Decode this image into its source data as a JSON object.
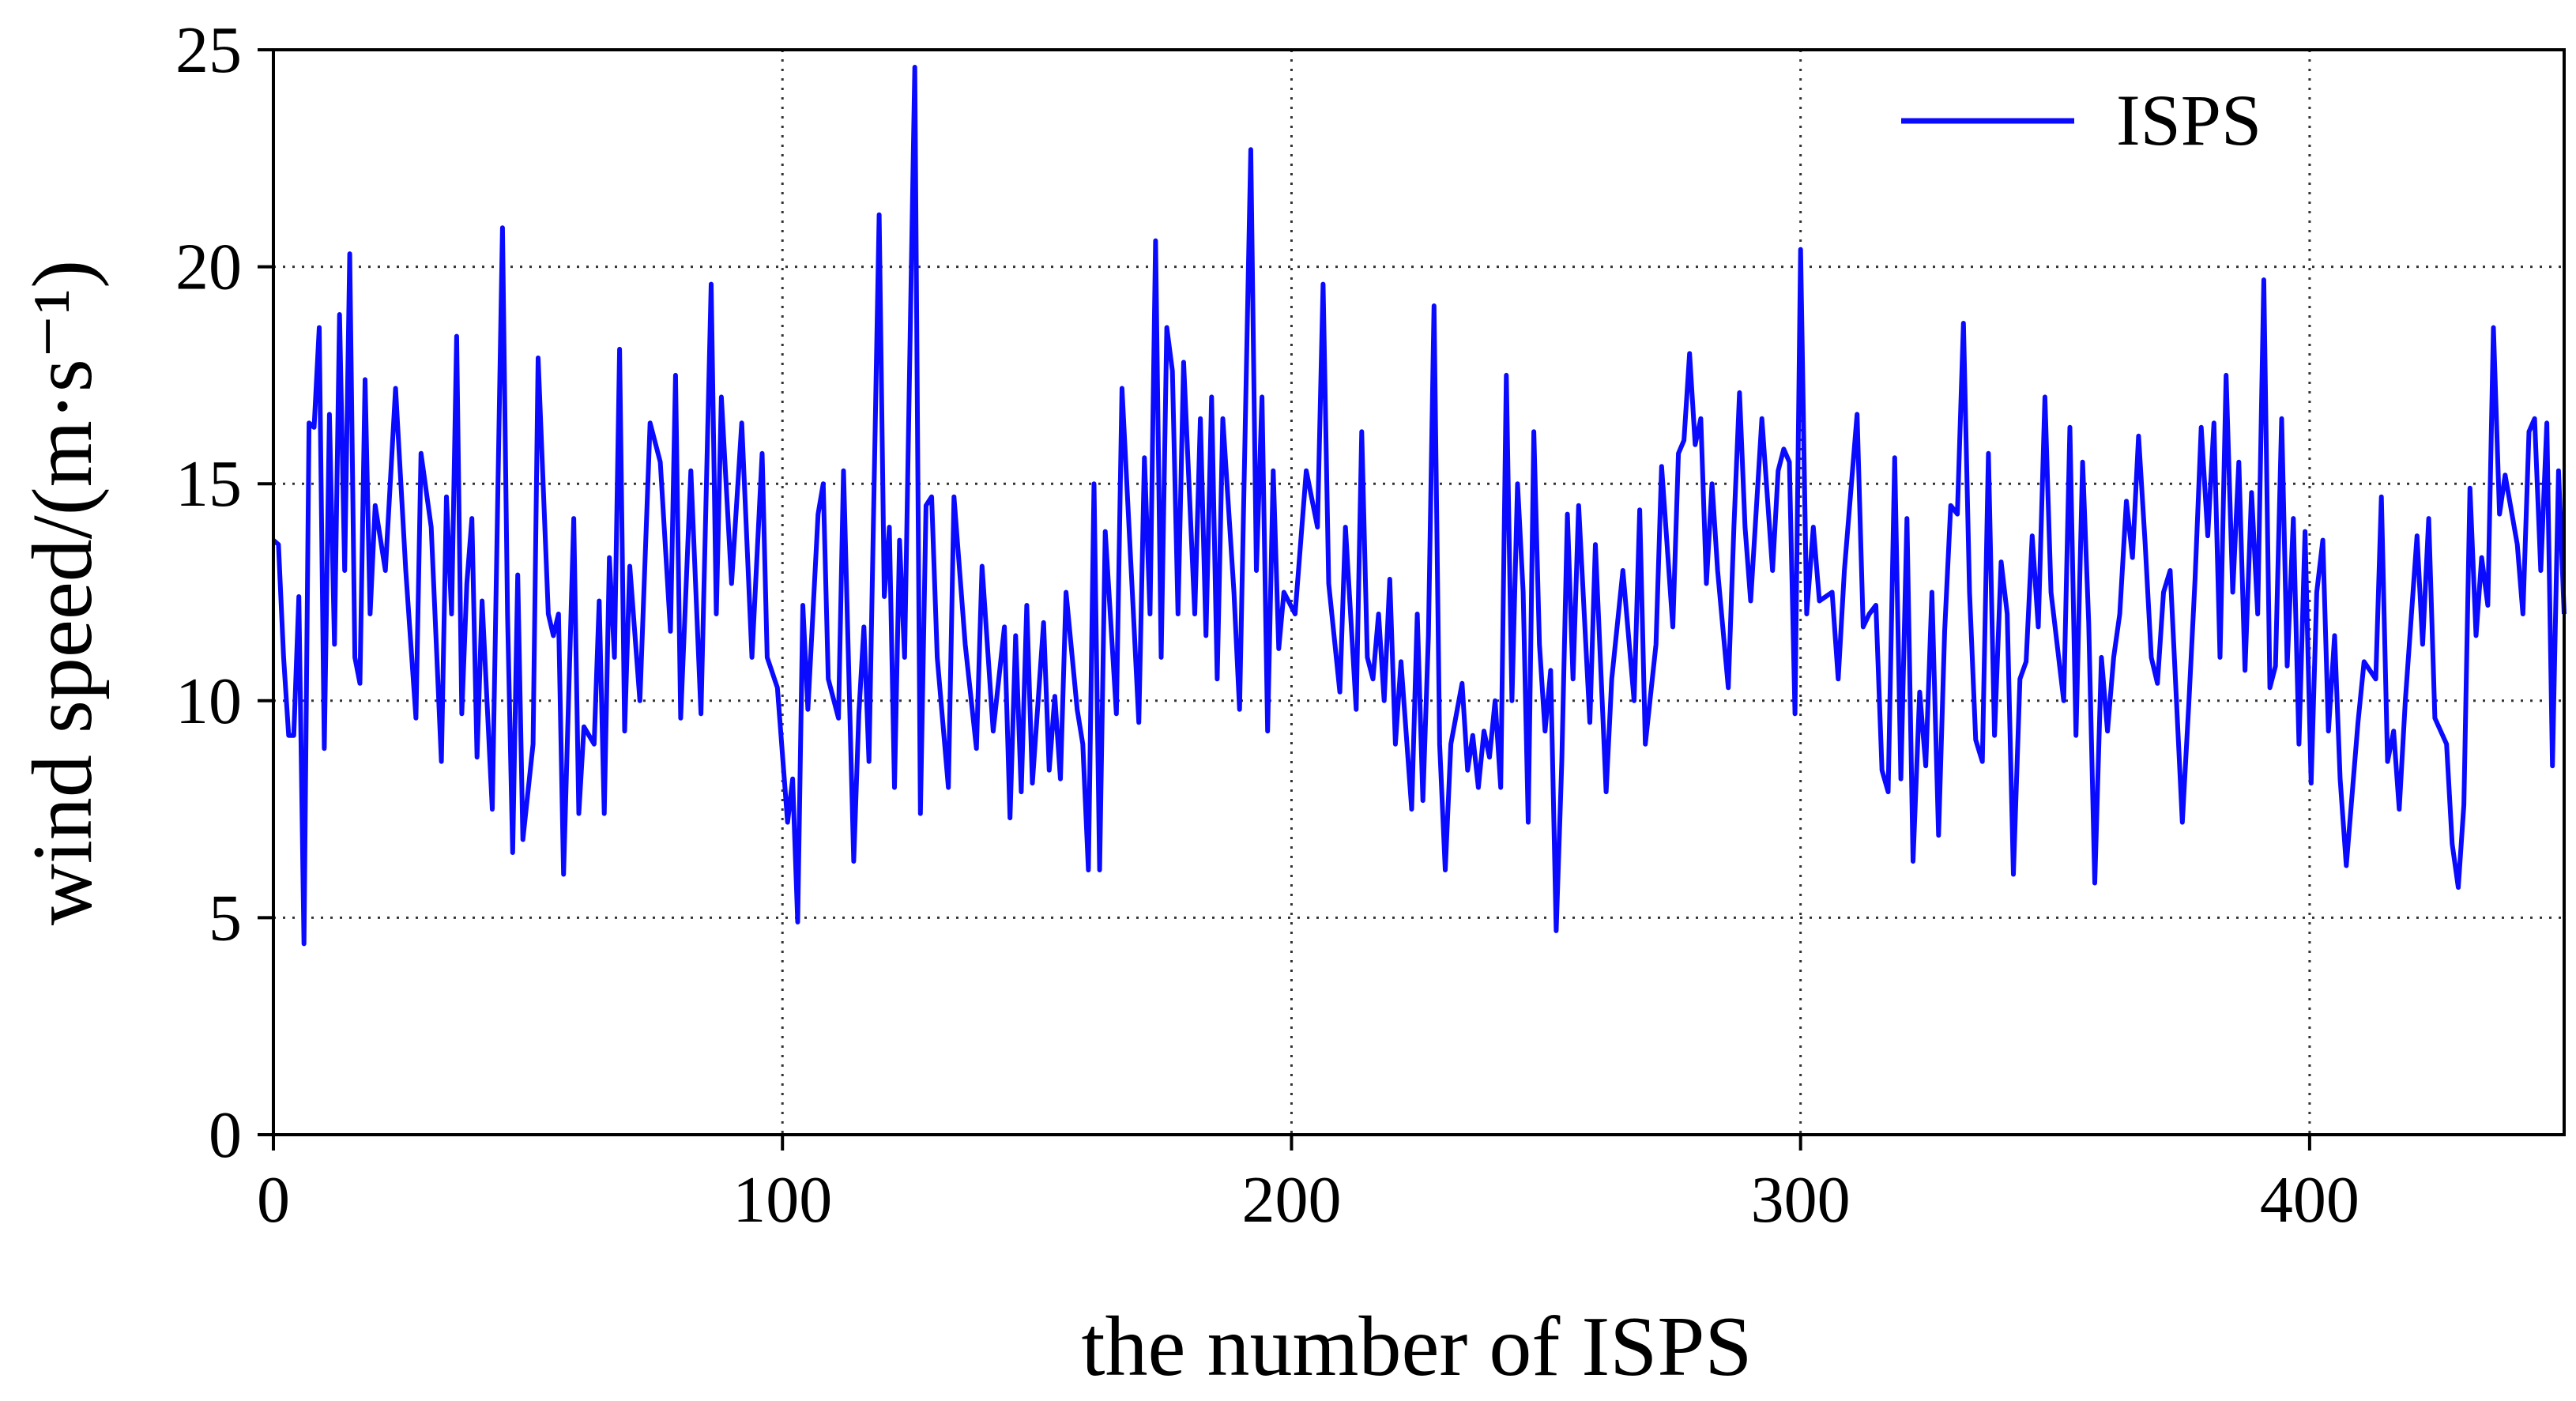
{
  "chart_data": {
    "type": "line",
    "xlabel": "the number of ISPS",
    "ylabel": "wind speed/(m·s⁻¹)",
    "xlim": [
      0,
      450
    ],
    "ylim": [
      0,
      25
    ],
    "xticks": [
      0,
      100,
      200,
      300,
      400
    ],
    "yticks": [
      0,
      5,
      10,
      15,
      20,
      25
    ],
    "grid": true,
    "legend": "upper right",
    "series": [
      {
        "name": "ISPS",
        "color": "#0a0aff",
        "x": [
          0,
          1,
          2,
          3,
          4,
          5,
          6,
          7,
          8,
          9,
          10,
          11,
          12,
          13,
          14,
          15,
          16,
          17,
          18,
          19,
          20,
          22,
          24,
          26,
          28,
          29,
          31,
          33,
          34,
          35,
          36,
          37,
          38,
          39,
          40,
          41,
          43,
          45,
          46,
          47,
          48,
          49,
          51,
          52,
          54,
          55,
          56,
          57,
          59,
          60,
          61,
          63,
          64,
          65,
          66,
          67,
          68,
          69,
          70,
          72,
          74,
          76,
          78,
          79,
          80,
          82,
          84,
          86,
          87,
          88,
          90,
          92,
          94,
          96,
          97,
          99,
          101,
          102,
          103,
          104,
          105,
          107,
          108,
          109,
          111,
          112,
          114,
          115,
          116,
          117,
          119,
          120,
          121,
          122,
          123,
          124,
          126,
          127.1,
          128.2,
          129.3,
          130.4,
          132.6,
          133.7,
          135.9,
          138.1,
          139.2,
          141.4,
          143.6,
          144.7,
          145.8,
          146.9,
          148,
          149.1,
          151.3,
          152.4,
          153.5,
          154.6,
          155.7,
          157.9,
          159,
          160.1,
          161.2,
          162.3,
          163.4,
          165.6,
          166.7,
          168.9,
          170,
          171.1,
          172.2,
          173.3,
          174.4,
          175.5,
          176.6,
          177.7,
          178.8,
          181,
          182.1,
          183.2,
          184.3,
          185.4,
          186.5,
          188.7,
          189.8,
          192,
          193.1,
          194.2,
          195.3,
          196.4,
          197.5,
          198.5,
          200.7,
          202.9,
          205.1,
          206.2,
          207.3,
          209.5,
          210.6,
          212.7,
          213.8,
          214.9,
          216,
          217.1,
          218.2,
          219.3,
          220.4,
          221.5,
          223.6,
          224.7,
          225.8,
          226.9,
          228,
          229.1,
          230.2,
          231.3,
          233.5,
          234.6,
          235.6,
          236.7,
          237.8,
          238.9,
          240,
          241.1,
          242.2,
          243.3,
          244.4,
          245.5,
          246.5,
          247.6,
          248.7,
          249.8,
          250.9,
          252,
          253.1,
          254.2,
          255.3,
          256.4,
          258.6,
          259.7,
          261.8,
          262.9,
          265.1,
          267.3,
          268.4,
          269.5,
          271.6,
          272.7,
          274.9,
          276,
          277.1,
          278.2,
          279.3,
          280.4,
          281.5,
          282.6,
          283.7,
          285.8,
          286.9,
          288,
          289.1,
          290.2,
          292.4,
          294.5,
          295.6,
          296.7,
          297.8,
          298.9,
          300,
          301.2,
          302.5,
          303.7,
          306.2,
          307.4,
          308.6,
          311.1,
          312.3,
          313.5,
          314.8,
          316,
          317.2,
          318.5,
          319.7,
          320.9,
          322.1,
          323.4,
          324.6,
          325.8,
          327.1,
          328.3,
          329.5,
          330.8,
          332,
          333.2,
          334.4,
          335.7,
          336.9,
          338.1,
          339.4,
          340.6,
          341.8,
          343.1,
          344.3,
          345.5,
          346.7,
          348,
          349.2,
          351.7,
          352.9,
          354.1,
          355.4,
          356.6,
          357.8,
          359.1,
          360.3,
          361.5,
          362.7,
          364,
          365.2,
          366.4,
          367.7,
          368.9,
          370.1,
          371.3,
          372.6,
          375,
          376.3,
          377.5,
          378.7,
          380,
          381.2,
          382.4,
          383.6,
          384.9,
          386.1,
          387.3,
          388.6,
          389.8,
          391,
          392.2,
          393.3,
          394.5,
          395.6,
          396.8,
          397.9,
          399.1,
          400.3,
          401.4,
          402.6,
          403.7,
          404.9,
          406,
          407.2,
          409.5,
          410.7,
          413,
          414.1,
          415.3,
          416.5,
          417.6,
          418.8,
          421.1,
          422.2,
          423.4,
          424.6,
          426.9,
          428,
          429.2,
          430.3,
          431.5,
          432.7,
          433.8,
          435,
          436.1,
          437.3,
          438.4,
          440.8,
          441.9,
          443.1,
          444.2,
          445.4,
          446.6,
          447.7,
          448.9,
          450
        ],
        "values": [
          13.7,
          13.6,
          11,
          9.2,
          9.2,
          12.4,
          4.4,
          16.4,
          16.3,
          18.6,
          8.9,
          16.6,
          11.3,
          18.9,
          13,
          20.3,
          11,
          10.4,
          17.4,
          12,
          14.5,
          13,
          17.2,
          13,
          9.6,
          15.7,
          14,
          8.6,
          14.7,
          12,
          18.4,
          9.7,
          12.7,
          14.2,
          8.7,
          12.3,
          7.5,
          20.9,
          12,
          6.5,
          12.9,
          6.8,
          9,
          17.9,
          12,
          11.5,
          12,
          6,
          14.2,
          7.4,
          9.4,
          9,
          12.3,
          7.4,
          13.3,
          11,
          18.1,
          9.3,
          13.1,
          10,
          16.4,
          15.5,
          11.6,
          17.5,
          9.6,
          15.3,
          9.7,
          19.6,
          12,
          17,
          12.7,
          16.4,
          11,
          15.7,
          11,
          10.3,
          7.2,
          8.2,
          4.9,
          12.2,
          9.8,
          14.3,
          15,
          10.5,
          9.6,
          15.3,
          6.3,
          9.7,
          11.7,
          8.6,
          21.2,
          12.4,
          14,
          8,
          13.7,
          11,
          24.6,
          7.4,
          14.5,
          14.7,
          11,
          8,
          14.7,
          11.3,
          8.9,
          13.1,
          9.3,
          11.7,
          7.3,
          11.5,
          7.9,
          12.2,
          8.1,
          11.8,
          8.4,
          10.1,
          8.2,
          12.5,
          9.8,
          9,
          6.1,
          15,
          6.1,
          13.9,
          9.7,
          17.2,
          12.1,
          9.5,
          15.6,
          12,
          20.6,
          11,
          18.6,
          17.6,
          12,
          17.8,
          12,
          16.5,
          11.5,
          17,
          10.5,
          16.5,
          12.5,
          9.8,
          22.7,
          13,
          17,
          9.3,
          15.3,
          11.2,
          12.5,
          12,
          15.3,
          14,
          19.6,
          12.7,
          10.2,
          14,
          9.8,
          16.2,
          11,
          10.5,
          12,
          10,
          12.8,
          9,
          10.9,
          7.5,
          12,
          7.7,
          11.5,
          19.1,
          9,
          6.1,
          9,
          10.4,
          8.4,
          9.2,
          8,
          9.3,
          8.7,
          10,
          8,
          17.5,
          10,
          15,
          12.5,
          7.2,
          16.2,
          11.3,
          9.3,
          10.7,
          4.7,
          8.6,
          14.3,
          10.5,
          14.5,
          9.5,
          13.6,
          7.9,
          10.5,
          13,
          10,
          14.4,
          9,
          11.3,
          15.4,
          11.7,
          15.7,
          16,
          18,
          15.9,
          16.5,
          12.7,
          15,
          13,
          10.3,
          14,
          17.1,
          14,
          12.3,
          16.5,
          13,
          15.3,
          15.8,
          15.5,
          9.7,
          20.4,
          12,
          14,
          12.3,
          12.5,
          10.5,
          13,
          16.6,
          11.7,
          12,
          12.2,
          8.4,
          7.9,
          15.6,
          8.2,
          14.2,
          6.3,
          10.2,
          8.5,
          12.5,
          6.9,
          11.6,
          14.5,
          14.3,
          18.7,
          12.5,
          9.1,
          8.6,
          15.7,
          9.2,
          13.2,
          12,
          6,
          10.5,
          10.9,
          13.8,
          11.7,
          17,
          12.5,
          10,
          16.3,
          9.2,
          15.5,
          11.8,
          5.8,
          11,
          9.3,
          11,
          12,
          14.6,
          13.3,
          16.1,
          13.6,
          11,
          10.4,
          12.5,
          13,
          7.2,
          10,
          12.8,
          16.3,
          13.8,
          16.4,
          11,
          17.5,
          12.5,
          15.5,
          10.7,
          14.8,
          12,
          19.7,
          10.3,
          10.8,
          16.5,
          10.8,
          14.2,
          9,
          13.9,
          8.1,
          12.5,
          13.7,
          9.3,
          11.5,
          8.2,
          6.2,
          9.5,
          10.9,
          10.5,
          14.7,
          8.6,
          9.3,
          7.5,
          10,
          13.8,
          11.3,
          14.2,
          9.6,
          9,
          6.7,
          5.7,
          7.6,
          14.9,
          11.5,
          13.3,
          12.2,
          18.6,
          14.3,
          15.2,
          13.6,
          12,
          16.2,
          16.5,
          13,
          16.4,
          8.5,
          15.3,
          12
        ]
      }
    ]
  }
}
